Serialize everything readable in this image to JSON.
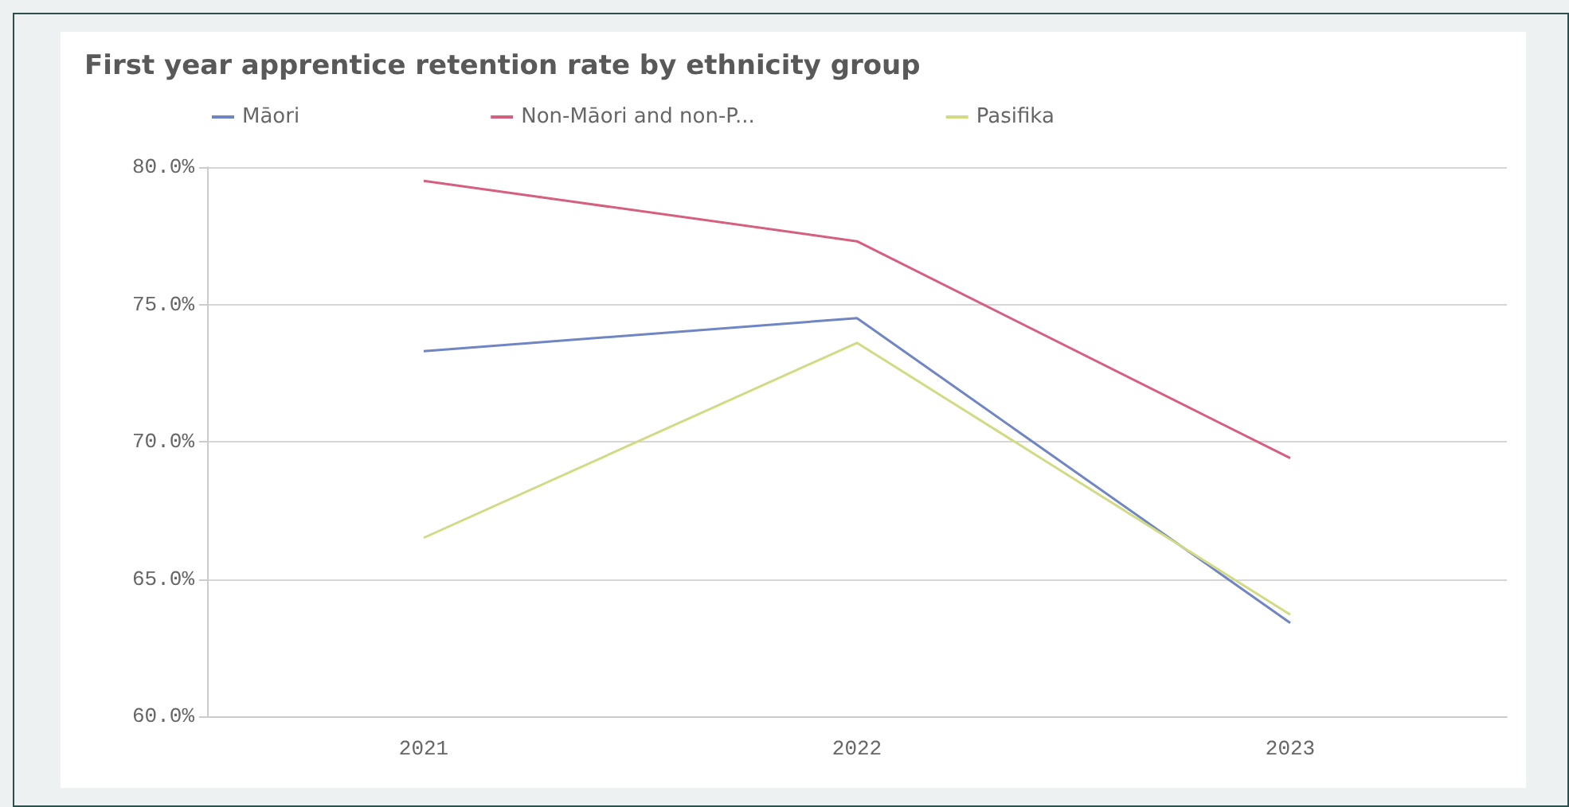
{
  "chart_data": {
    "type": "line",
    "title": "First year apprentice retention rate by ethnicity group",
    "categories": [
      "2021",
      "2022",
      "2023"
    ],
    "series": [
      {
        "name": "Māori",
        "color": "#7085c4",
        "values": [
          73.3,
          74.5,
          63.4
        ]
      },
      {
        "name": "Non-Māori and non-P...",
        "color": "#d65f80",
        "values": [
          79.5,
          77.3,
          69.4
        ]
      },
      {
        "name": "Pasifika",
        "color": "#d2da84",
        "values": [
          66.5,
          73.6,
          63.7
        ]
      }
    ],
    "ylim": [
      60,
      80
    ],
    "yticks": [
      {
        "value": 60,
        "label": "60.0%"
      },
      {
        "value": 65,
        "label": "65.0%"
      },
      {
        "value": 70,
        "label": "70.0%"
      },
      {
        "value": 75,
        "label": "75.0%"
      },
      {
        "value": 80,
        "label": "80.0%"
      }
    ],
    "grid": "y",
    "legend": "top left",
    "marker": "none",
    "line_style": "solid"
  }
}
